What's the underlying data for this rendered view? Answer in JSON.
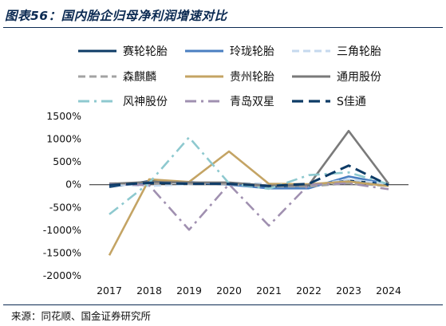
{
  "title": "图表56：国内胎企归母净利润增速对比",
  "source": "来源：同花顺、国金证券研究所",
  "colors": {
    "title": "#0b2a52",
    "rule": "#0b2a52"
  },
  "chart_data": {
    "type": "line",
    "title": "图表56：国内胎企归母净利润增速对比",
    "x": [
      "2017",
      "2018",
      "2019",
      "2020",
      "2021",
      "2022",
      "2023",
      "2024"
    ],
    "y_ticks": [
      "-2000%",
      "-1500%",
      "-1000%",
      "-500%",
      "0%",
      "500%",
      "1000%",
      "1500%"
    ],
    "ylim": [
      -2000,
      1500
    ],
    "y_unit": "%",
    "grid": false,
    "legend_position": "top",
    "series": [
      {
        "name": "赛轮轮胎",
        "color": "#0d3b66",
        "dash": "solid",
        "values": [
          -50,
          80,
          30,
          10,
          -40,
          -20,
          90,
          10
        ]
      },
      {
        "name": "玲珑轮胎",
        "color": "#4a7fc1",
        "dash": "solid",
        "values": [
          -20,
          30,
          60,
          0,
          -80,
          -80,
          180,
          20
        ]
      },
      {
        "name": "三角轮胎",
        "color": "#c5d9ee",
        "dash": "dashed",
        "values": [
          10,
          -30,
          10,
          40,
          20,
          -20,
          120,
          10
        ]
      },
      {
        "name": "森麒麟",
        "color": "#a3a3a3",
        "dash": "dashed",
        "values": [
          30,
          20,
          20,
          10,
          -40,
          -40,
          30,
          -30
        ]
      },
      {
        "name": "贵州轮胎",
        "color": "#c4a464",
        "dash": "solid",
        "values": [
          -1550,
          120,
          60,
          730,
          20,
          10,
          70,
          -30
        ]
      },
      {
        "name": "通用股份",
        "color": "#7a7a7a",
        "dash": "solid",
        "values": [
          20,
          60,
          50,
          50,
          -20,
          -10,
          1180,
          20
        ]
      },
      {
        "name": "风神股份",
        "color": "#8ec9cf",
        "dash": "dashdot",
        "values": [
          -650,
          40,
          1040,
          30,
          -90,
          210,
          270,
          10
        ]
      },
      {
        "name": "青岛双星",
        "color": "#a090b0",
        "dash": "dashdot",
        "values": [
          10,
          -10,
          -990,
          10,
          -900,
          0,
          30,
          -100
        ]
      },
      {
        "name": "S佳通",
        "color": "#0d3b66",
        "dash": "bigdash",
        "values": [
          -10,
          40,
          20,
          20,
          -30,
          20,
          420,
          -10
        ]
      }
    ]
  }
}
